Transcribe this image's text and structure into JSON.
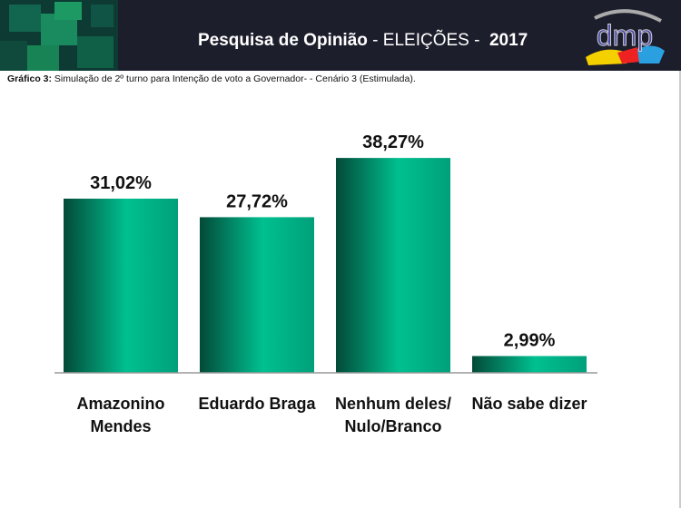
{
  "header": {
    "title_bold": "Pesquisa de Opinião",
    "title_rest": " - ELEIÇÕES -",
    "year": "2017",
    "logo_text": "dmp",
    "colors": {
      "background": "#1c1e2c",
      "logo_text": "#4a4aa8"
    }
  },
  "caption": {
    "label": "Gráfico 3:",
    "text": " Simulação de 2º turno para Intenção de voto a Governador- - Cenário 3 (Estimulada)."
  },
  "chart_data": {
    "type": "bar",
    "categories": [
      [
        "Amazonino",
        "Mendes"
      ],
      [
        "Eduardo Braga"
      ],
      [
        "Nenhum deles/",
        "Nulo/Branco"
      ],
      [
        "Não sabe dizer"
      ]
    ],
    "values": [
      31.02,
      27.72,
      38.27,
      2.99
    ],
    "data_labels": [
      "31,02%",
      "27,72%",
      "38,27%",
      "2,99%"
    ],
    "bar_color": "#00b98a",
    "grid": false,
    "legend": "none"
  }
}
